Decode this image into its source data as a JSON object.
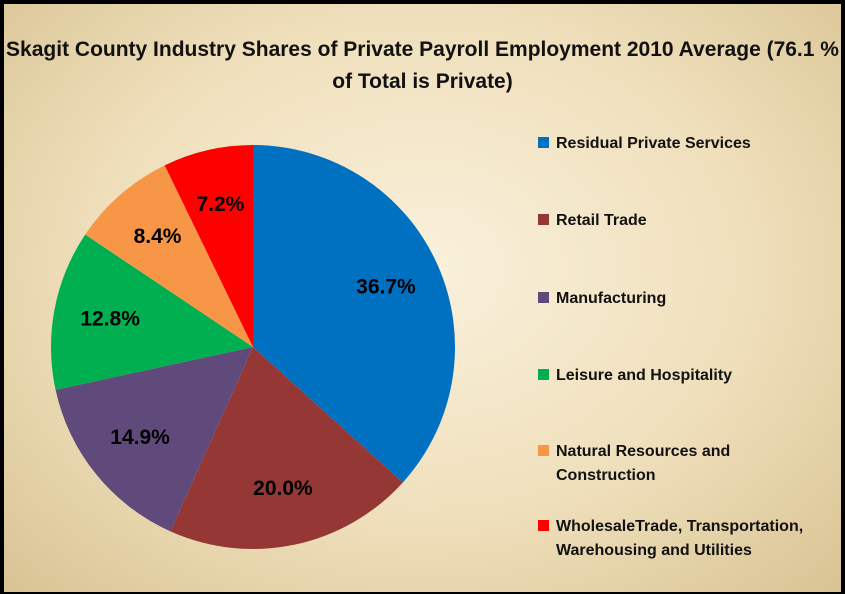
{
  "chart_data": {
    "type": "pie",
    "title": "Skagit County Industry Shares of Private Payroll Employment  2010 Average (76.1 % of Total is Private)",
    "categories": [
      "Residual Private Services",
      "Retail Trade",
      "Manufacturing",
      "Leisure and Hospitality",
      "Natural Resources and Construction",
      "WholesaleTrade, Transportation, Warehousing and Utilities"
    ],
    "values": [
      36.7,
      20.0,
      14.9,
      12.8,
      8.4,
      7.2
    ],
    "value_labels": [
      "36.7%",
      "20.0%",
      "14.9%",
      "12.8%",
      "8.4%",
      "7.2%"
    ],
    "colors": [
      "#0070c0",
      "#953735",
      "#604a7b",
      "#00b050",
      "#f79646",
      "#ff0000"
    ],
    "legend": "right"
  }
}
